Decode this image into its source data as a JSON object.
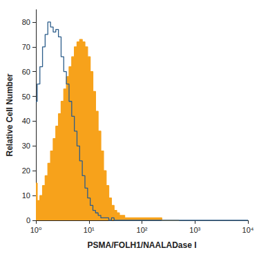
{
  "chart_data": {
    "type": "histogram",
    "x_label": "PSMA/FOLH1/NAALADase I",
    "y_label": "Relative Cell Number",
    "log": "x",
    "grid": false,
    "x": [
      1,
      1.12,
      1.26,
      1.41,
      1.58,
      1.78,
      2,
      2.24,
      2.51,
      2.82,
      3.16,
      3.55,
      3.98,
      4.47,
      5.01,
      5.62,
      6.31,
      7.08,
      7.94,
      8.91,
      10,
      11.2,
      12.6,
      14.1,
      15.8,
      17.8,
      20,
      22.4,
      25.1,
      28.2,
      31.6,
      35.5,
      39.8,
      44.7,
      50.1,
      56.2,
      63.1,
      70.8,
      79.4,
      89.1,
      100,
      112,
      126,
      141,
      158,
      178,
      200,
      224,
      251,
      1000,
      10000
    ],
    "series": [
      {
        "type": "area",
        "color": "#f7a21b",
        "line_style": "step",
        "values": [
          15,
          8,
          10,
          14,
          18,
          23,
          28,
          33,
          38,
          43,
          48,
          53,
          58,
          62,
          66,
          70,
          72,
          73,
          72,
          70,
          66,
          60,
          52,
          44,
          36,
          28,
          20,
          14,
          9,
          6,
          4,
          3,
          2,
          2,
          1,
          1,
          1,
          1,
          1,
          1,
          1,
          1,
          1,
          1,
          1,
          1,
          1,
          1,
          0,
          null,
          null
        ]
      },
      {
        "type": "line",
        "color": "#2b5c8a",
        "line_style": "step",
        "values": [
          48,
          55,
          62,
          70,
          75,
          80,
          78,
          76,
          77,
          74,
          66,
          60,
          55,
          48,
          42,
          36,
          30,
          24,
          18,
          13,
          9,
          6,
          4,
          3,
          2,
          1,
          1,
          1,
          0,
          1,
          0,
          0,
          0,
          0,
          0,
          0,
          0,
          0,
          0,
          0,
          0,
          0,
          0,
          0,
          0,
          0,
          0,
          0,
          0,
          0,
          0
        ]
      }
    ],
    "xlim": [
      1,
      10000
    ],
    "xticks": [
      {
        "value": 1,
        "label": "10⁰"
      },
      {
        "value": 10,
        "label": "10¹"
      },
      {
        "value": 100,
        "label": "10²"
      },
      {
        "value": 1000,
        "label": "10³"
      },
      {
        "value": 10000,
        "label": "10⁴"
      }
    ],
    "ylim": [
      0,
      85
    ],
    "yticks": [
      0,
      10,
      20,
      30,
      40,
      50,
      60,
      70,
      80
    ]
  }
}
